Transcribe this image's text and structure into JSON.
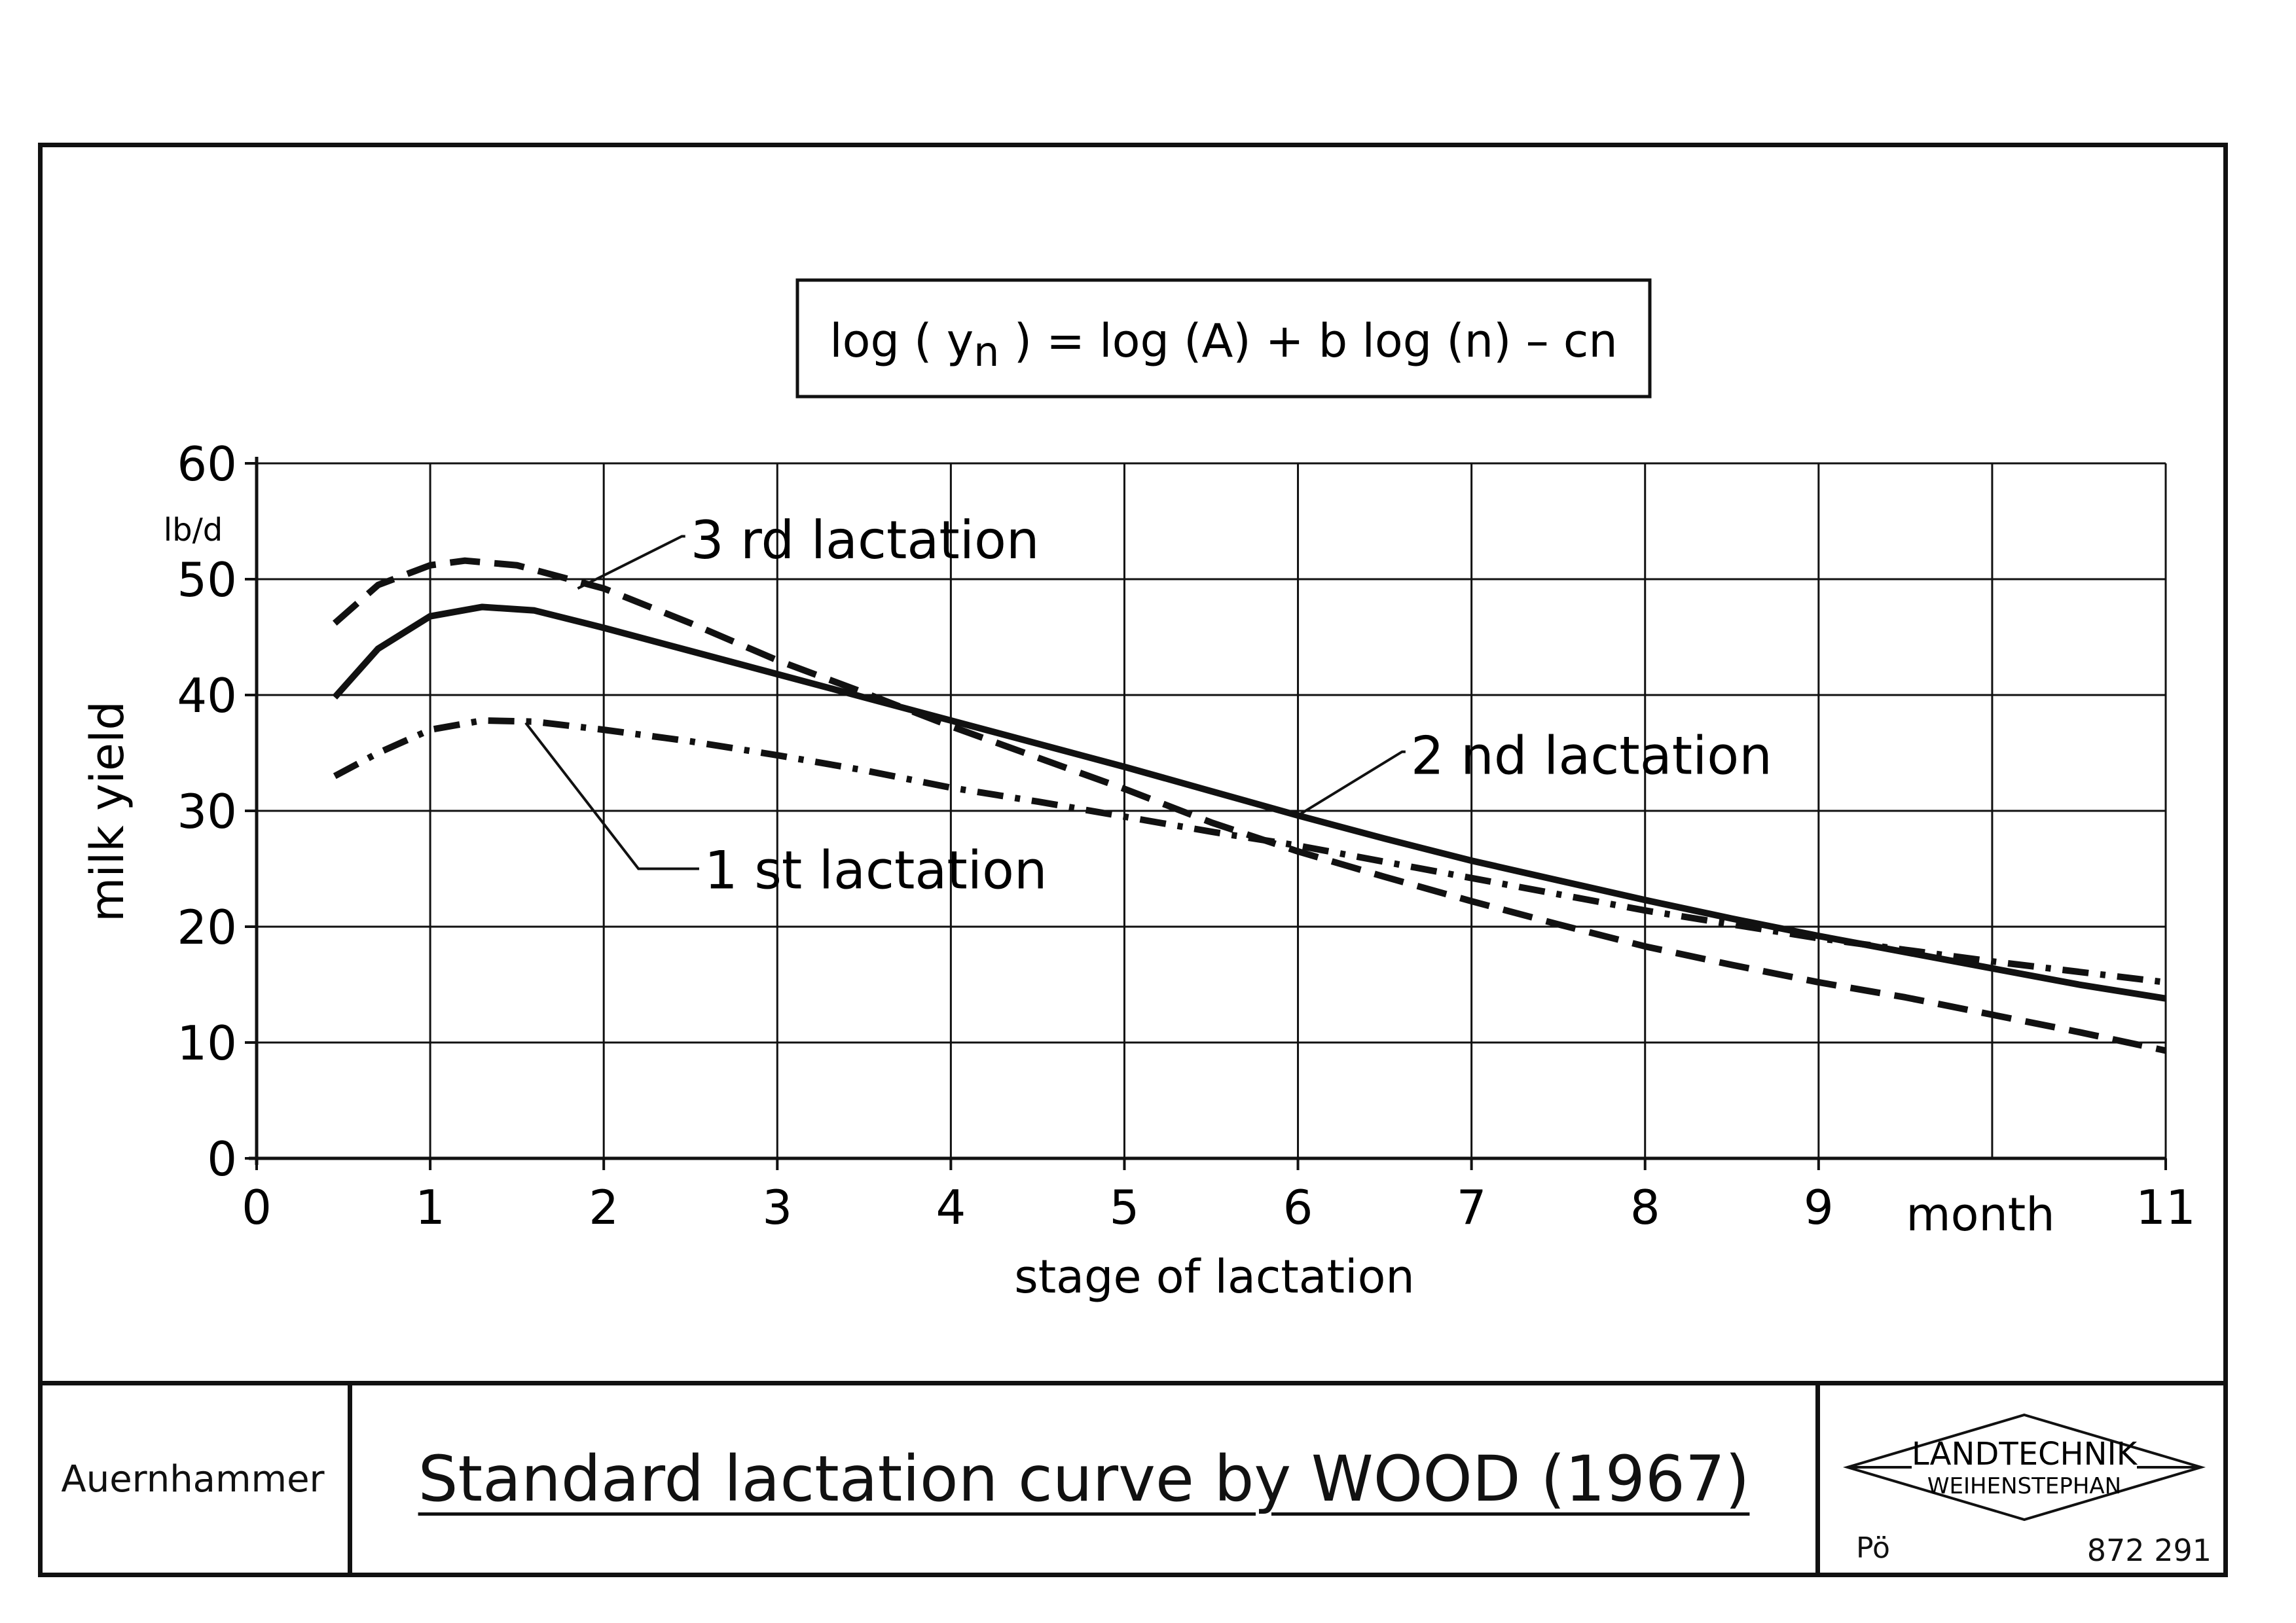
{
  "formula": "log (yn) = log (A) + b log (n) - cn",
  "formula_parts": {
    "pre": "log ( y",
    "sub": "n",
    "post": " ) = log (A) + b log (n) – cn"
  },
  "title_block": {
    "author": "Auernhammer",
    "title": "Standard lactation curve by WOOD (1967)",
    "logo_line1": "LANDTECHNIK",
    "logo_line2": "WEIHENSTEPHAN",
    "code": "Pö",
    "number": "872 291"
  },
  "chart_data": {
    "type": "line",
    "title": "",
    "xlabel": "stage of lactation",
    "ylabel": "milk yield",
    "yunit": "lb/d",
    "xunit_label": "month",
    "xlim": [
      0,
      11
    ],
    "ylim": [
      0,
      60
    ],
    "xticks": [
      0,
      1,
      2,
      3,
      4,
      5,
      6,
      7,
      8,
      9,
      11
    ],
    "yticks": [
      0,
      10,
      20,
      30,
      40,
      50,
      60
    ],
    "grid": true,
    "series": [
      {
        "name": "1 st lactation",
        "style": "dash-dot",
        "x": [
          0.45,
          0.7,
          1.0,
          1.3,
          1.6,
          2.0,
          2.5,
          3.0,
          3.5,
          4.0,
          4.5,
          5.0,
          5.5,
          6.0,
          6.5,
          7.0,
          7.5,
          8.0,
          8.5,
          9.0,
          9.5,
          10.0,
          10.5,
          11.0
        ],
        "values": [
          33.0,
          35.0,
          37.0,
          37.8,
          37.7,
          37.0,
          36.0,
          34.8,
          33.5,
          32.0,
          30.8,
          29.5,
          28.2,
          27.0,
          25.6,
          24.2,
          22.8,
          21.4,
          20.2,
          19.0,
          18.0,
          17.0,
          16.1,
          15.2
        ]
      },
      {
        "name": "2 nd lactation",
        "style": "solid",
        "x": [
          0.45,
          0.7,
          1.0,
          1.3,
          1.6,
          2.0,
          2.5,
          3.0,
          3.5,
          4.0,
          4.5,
          5.0,
          5.5,
          6.0,
          6.5,
          7.0,
          7.5,
          8.0,
          8.5,
          9.0,
          9.5,
          10.0,
          10.5,
          11.0
        ],
        "values": [
          39.8,
          44.0,
          46.8,
          47.6,
          47.3,
          45.8,
          43.8,
          41.8,
          39.8,
          37.8,
          35.8,
          33.8,
          31.7,
          29.6,
          27.6,
          25.7,
          24.0,
          22.3,
          20.7,
          19.2,
          17.8,
          16.4,
          15.0,
          13.8
        ]
      },
      {
        "name": "3 rd lactation",
        "style": "dashed",
        "x": [
          0.45,
          0.7,
          1.0,
          1.2,
          1.5,
          2.0,
          2.5,
          3.0,
          3.5,
          4.0,
          4.5,
          5.0,
          5.5,
          6.0,
          6.5,
          7.0,
          7.5,
          8.0,
          8.5,
          9.0,
          9.5,
          10.0,
          10.5,
          11.0
        ],
        "values": [
          46.2,
          49.5,
          51.2,
          51.6,
          51.2,
          49.2,
          46.2,
          43.0,
          40.2,
          37.3,
          34.6,
          31.9,
          29.0,
          26.5,
          24.3,
          22.2,
          20.2,
          18.3,
          16.7,
          15.2,
          13.9,
          12.4,
          10.9,
          9.3
        ]
      }
    ],
    "annotations": [
      {
        "text": "3 rd lactation",
        "series": "3 rd lactation"
      },
      {
        "text": "2 nd lactation",
        "series": "2 nd lactation"
      },
      {
        "text": "1 st lactation",
        "series": "1 st lactation"
      }
    ]
  }
}
